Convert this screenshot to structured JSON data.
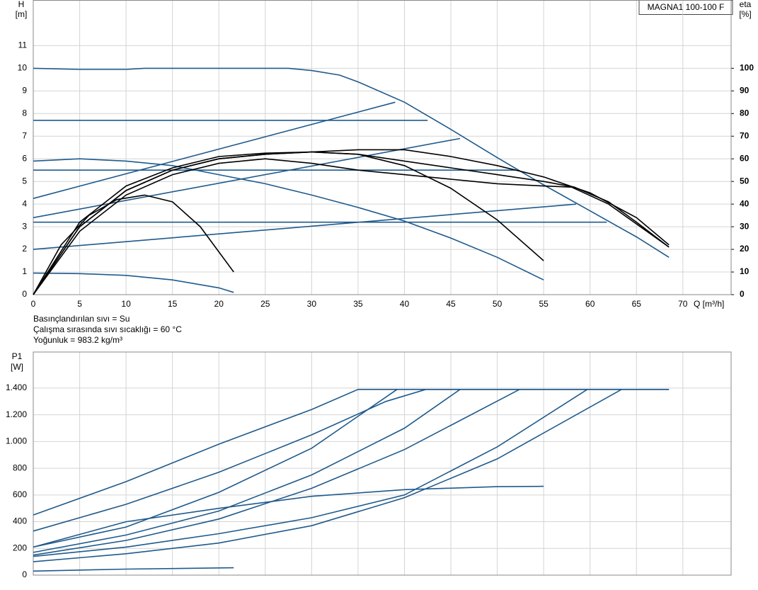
{
  "chart_data": [
    {
      "type": "line",
      "title": "MAGNA1 100-100 F",
      "y_label": "H",
      "y_unit": "[m]",
      "y2_label": "eta",
      "y2_unit": "[%]",
      "x_label": "Q [m³/h]",
      "annotations": [
        "Basınçlandırılan sıvı = Su",
        "Çalışma sırasında sıvı sıcaklığı = 60 °C",
        "Yoğunluk = 983.2 kg/m³"
      ],
      "xlim": [
        0,
        75.2
      ],
      "ylim": [
        0,
        13
      ],
      "y2lim": [
        0,
        130
      ],
      "xticks": [
        0,
        5,
        10,
        15,
        20,
        25,
        30,
        35,
        40,
        45,
        50,
        55,
        60,
        65,
        70
      ],
      "yticks": [
        0,
        1,
        2,
        3,
        4,
        5,
        6,
        7,
        8,
        9,
        10,
        11
      ],
      "y2ticks": [
        0,
        10,
        20,
        30,
        40,
        50,
        60,
        70,
        80,
        90,
        100
      ],
      "grid": true,
      "series": [
        {
          "color": "#1f5a8c",
          "x": [
            0,
            5,
            10,
            12,
            20,
            27.5,
            30,
            33,
            35,
            40,
            45,
            50,
            55,
            60,
            65,
            68.5
          ],
          "values": [
            10,
            9.95,
            9.95,
            10,
            10,
            10,
            9.9,
            9.7,
            9.4,
            8.5,
            7.3,
            6.05,
            4.85,
            3.7,
            2.55,
            1.65
          ]
        },
        {
          "color": "#1f5a8c",
          "x": [
            0,
            5,
            10,
            15,
            20,
            25,
            30,
            35,
            40,
            45,
            50,
            55
          ],
          "values": [
            5.9,
            6.0,
            5.9,
            5.7,
            5.3,
            4.9,
            4.4,
            3.85,
            3.25,
            2.5,
            1.65,
            0.65
          ]
        },
        {
          "color": "#1f5a8c",
          "x": [
            0,
            5,
            10,
            15,
            20,
            21.6
          ],
          "values": [
            0.95,
            0.93,
            0.85,
            0.65,
            0.3,
            0.1
          ]
        },
        {
          "color": "#1f5a8c",
          "x": [
            0,
            42.5
          ],
          "values": [
            7.7,
            7.7
          ]
        },
        {
          "color": "#1f5a8c",
          "x": [
            0,
            52
          ],
          "values": [
            5.5,
            5.5
          ]
        },
        {
          "color": "#1f5a8c",
          "x": [
            0,
            61.8
          ],
          "values": [
            3.2,
            3.2
          ]
        },
        {
          "color": "#1f5a8c",
          "x": [
            0,
            39
          ],
          "values": [
            4.25,
            8.5
          ]
        },
        {
          "color": "#1f5a8c",
          "x": [
            0,
            46
          ],
          "values": [
            3.4,
            6.9
          ]
        },
        {
          "color": "#1f5a8c",
          "x": [
            0,
            58.5
          ],
          "values": [
            2.0,
            4.0
          ]
        },
        {
          "color": "#000000",
          "axis": "y2",
          "x": [
            0,
            3,
            6,
            9,
            12,
            15,
            18,
            21.6
          ],
          "values": [
            0,
            22,
            35,
            42,
            44,
            41,
            30,
            10
          ]
        },
        {
          "color": "#000000",
          "axis": "y2",
          "x": [
            0,
            5,
            10,
            15,
            20,
            25,
            30,
            35,
            40,
            45,
            50,
            55
          ],
          "values": [
            0,
            30,
            46,
            55,
            60,
            62,
            63,
            62,
            57,
            47,
            33,
            15
          ]
        },
        {
          "color": "#000000",
          "axis": "y2",
          "x": [
            0,
            5,
            10,
            15,
            20,
            25,
            30,
            35,
            40,
            45,
            50,
            55,
            58.3,
            62,
            65,
            68.5
          ],
          "values": [
            0,
            32,
            48,
            56,
            61,
            62.5,
            63,
            62,
            59,
            56,
            53,
            50,
            47.5,
            41,
            32,
            21
          ]
        },
        {
          "color": "#000000",
          "axis": "y2",
          "x": [
            0,
            5,
            10,
            15,
            20,
            25,
            30,
            35,
            40,
            45,
            50,
            55,
            60,
            65,
            68.5
          ],
          "values": [
            0,
            30,
            46,
            55,
            60,
            62,
            63,
            64,
            64,
            61,
            57,
            52,
            45,
            34,
            22
          ]
        },
        {
          "color": "#000000",
          "axis": "y2",
          "x": [
            0,
            5,
            10,
            15,
            20,
            25,
            30,
            35,
            40,
            45,
            50,
            55,
            58,
            62,
            68.5
          ],
          "values": [
            0,
            28,
            44,
            53,
            58,
            60,
            58,
            55,
            53,
            51,
            49,
            48,
            47.5,
            40,
            21
          ]
        }
      ]
    },
    {
      "type": "line",
      "y_label": "P1",
      "y_unit": "[W]",
      "xlim": [
        0,
        75.2
      ],
      "ylim": [
        0,
        1670
      ],
      "xticks": [
        0,
        5,
        10,
        15,
        20,
        25,
        30,
        35,
        40,
        45,
        50,
        55,
        60,
        65,
        70
      ],
      "yticks": [
        0,
        200,
        400,
        600,
        800,
        {
          "value": 1000,
          "label": "1.000"
        },
        {
          "value": 1200,
          "label": "1.200"
        },
        {
          "value": 1400,
          "label": "1.400"
        }
      ],
      "grid": true,
      "series": [
        {
          "color": "#1f5a8c",
          "x": [
            0,
            10,
            20,
            30,
            35,
            68.5
          ],
          "values": [
            450,
            700,
            980,
            1240,
            1390,
            1390
          ]
        },
        {
          "color": "#1f5a8c",
          "x": [
            0,
            10,
            20,
            30,
            38,
            42.3,
            68.5
          ],
          "values": [
            330,
            530,
            770,
            1050,
            1300,
            1390,
            1390
          ]
        },
        {
          "color": "#1f5a8c",
          "x": [
            0,
            10,
            20,
            30,
            39.2
          ],
          "values": [
            210,
            360,
            620,
            950,
            1390
          ]
        },
        {
          "color": "#1f5a8c",
          "x": [
            0,
            10,
            20,
            30,
            40,
            46
          ],
          "values": [
            170,
            300,
            480,
            750,
            1100,
            1390
          ]
        },
        {
          "color": "#1f5a8c",
          "x": [
            0,
            10,
            20,
            30,
            40,
            52.4
          ],
          "values": [
            150,
            260,
            420,
            650,
            940,
            1390
          ]
        },
        {
          "color": "#1f5a8c",
          "x": [
            0,
            10,
            20,
            30,
            40,
            50,
            59.7
          ],
          "values": [
            140,
            210,
            310,
            430,
            600,
            960,
            1390
          ]
        },
        {
          "color": "#1f5a8c",
          "x": [
            0,
            10,
            20,
            30,
            40,
            50,
            63.4
          ],
          "values": [
            100,
            160,
            240,
            370,
            580,
            870,
            1390
          ]
        },
        {
          "color": "#1f5a8c",
          "x": [
            0,
            10,
            20,
            30,
            40,
            50,
            55
          ],
          "values": [
            210,
            400,
            500,
            590,
            640,
            662,
            665
          ]
        },
        {
          "color": "#1f5a8c",
          "x": [
            0,
            10,
            21.6
          ],
          "values": [
            30,
            45,
            55
          ]
        }
      ]
    }
  ]
}
